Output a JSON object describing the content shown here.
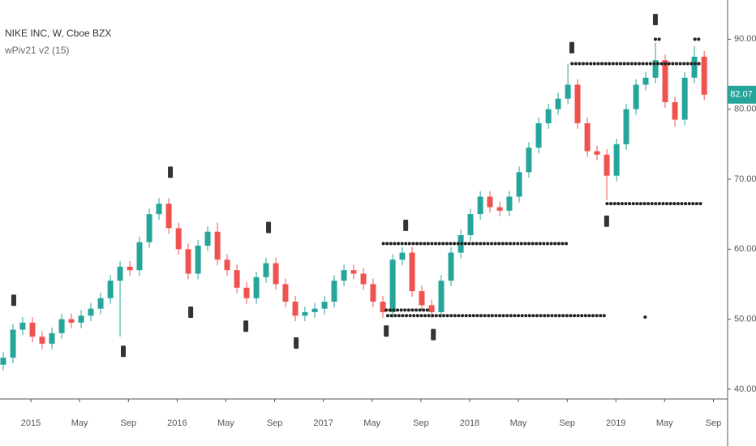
{
  "chart_data": {
    "type": "candlestick",
    "title": "NIKE INC, W, Cboe BZX",
    "subtitle": "wPiv21 v2 (15)",
    "up_color": "#26a69a",
    "down_color": "#ef5350",
    "marker_color": "#333333",
    "last_price": 82.07,
    "xlim": [
      2014.789,
      2019.764
    ],
    "ylim": [
      38.6,
      95.6
    ],
    "xticks": [
      {
        "value": 2015,
        "label": "2015"
      },
      {
        "value": 2015.333,
        "label": "May"
      },
      {
        "value": 2015.667,
        "label": "Sep"
      },
      {
        "value": 2016,
        "label": "2016"
      },
      {
        "value": 2016.333,
        "label": "May"
      },
      {
        "value": 2016.667,
        "label": "Sep"
      },
      {
        "value": 2017,
        "label": "2017"
      },
      {
        "value": 2017.333,
        "label": "May"
      },
      {
        "value": 2017.667,
        "label": "Sep"
      },
      {
        "value": 2018,
        "label": "2018"
      },
      {
        "value": 2018.333,
        "label": "May"
      },
      {
        "value": 2018.667,
        "label": "Sep"
      },
      {
        "value": 2019,
        "label": "2019"
      },
      {
        "value": 2019.333,
        "label": "May"
      },
      {
        "value": 2019.667,
        "label": "Sep"
      }
    ],
    "yticks": [
      {
        "value": 40,
        "label": "40.00"
      },
      {
        "value": 50,
        "label": "50.00"
      },
      {
        "value": 60,
        "label": "60.00"
      },
      {
        "value": 70,
        "label": "70.00"
      },
      {
        "value": 80,
        "label": "80.00"
      },
      {
        "value": 90,
        "label": "90.00"
      }
    ],
    "x": [
      2014.811,
      2014.878,
      2014.944,
      2015.011,
      2015.077,
      2015.144,
      2015.211,
      2015.277,
      2015.344,
      2015.41,
      2015.477,
      2015.544,
      2015.61,
      2015.677,
      2015.743,
      2015.81,
      2015.876,
      2015.943,
      2016.01,
      2016.076,
      2016.143,
      2016.209,
      2016.276,
      2016.342,
      2016.409,
      2016.475,
      2016.542,
      2016.608,
      2016.675,
      2016.741,
      2016.808,
      2016.874,
      2016.941,
      2017.008,
      2017.074,
      2017.141,
      2017.207,
      2017.274,
      2017.34,
      2017.407,
      2017.474,
      2017.54,
      2017.607,
      2017.673,
      2017.74,
      2017.806,
      2017.873,
      2017.94,
      2018.006,
      2018.073,
      2018.139,
      2018.206,
      2018.272,
      2018.339,
      2018.405,
      2018.472,
      2018.539,
      2018.605,
      2018.672,
      2018.738,
      2018.805,
      2018.871,
      2018.938,
      2019.005,
      2019.071,
      2019.138,
      2019.204,
      2019.271,
      2019.337,
      2019.404,
      2019.471,
      2019.537,
      2019.604
    ],
    "open": [
      43.5,
      44.5,
      48.5,
      49.5,
      47.5,
      46.5,
      48.0,
      50.0,
      49.5,
      50.5,
      51.5,
      53.0,
      55.5,
      57.5,
      57.0,
      61.0,
      65.0,
      66.5,
      63.0,
      60.0,
      56.5,
      60.5,
      62.5,
      58.5,
      57.0,
      54.5,
      53.0,
      56.0,
      58.0,
      55.0,
      52.5,
      50.5,
      51.0,
      51.5,
      52.5,
      55.5,
      57.0,
      56.5,
      55.0,
      52.5,
      51.0,
      58.5,
      59.5,
      54.0,
      52.0,
      51.0,
      55.5,
      59.5,
      62.0,
      65.0,
      67.5,
      66.0,
      65.5,
      67.5,
      71.0,
      74.5,
      78.0,
      80.0,
      81.5,
      83.5,
      78.0,
      74.0,
      73.5,
      70.5,
      75.0,
      80.0,
      83.5,
      84.5,
      87.0,
      81.0,
      78.5,
      84.5,
      87.5
    ],
    "high": [
      45.3,
      49.3,
      50.3,
      50.3,
      48.3,
      48.8,
      50.8,
      50.8,
      51.3,
      52.3,
      53.8,
      56.3,
      58.3,
      58.3,
      61.8,
      65.8,
      67.3,
      67.3,
      63.8,
      60.8,
      61.3,
      63.3,
      63.8,
      59.3,
      57.8,
      55.3,
      56.8,
      58.8,
      58.8,
      55.8,
      53.3,
      51.8,
      52.3,
      53.3,
      56.3,
      57.8,
      57.8,
      57.3,
      55.8,
      53.3,
      59.3,
      60.3,
      60.3,
      54.8,
      52.8,
      56.3,
      60.3,
      62.8,
      65.8,
      68.3,
      68.3,
      66.8,
      68.3,
      71.8,
      75.3,
      78.8,
      80.8,
      82.3,
      86.5,
      84.3,
      78.8,
      74.8,
      74.3,
      75.8,
      80.8,
      84.3,
      85.3,
      89.5,
      87.8,
      81.8,
      85.3,
      89.0,
      88.3
    ],
    "low": [
      42.7,
      43.7,
      47.7,
      46.7,
      45.7,
      45.7,
      47.2,
      48.7,
      48.7,
      49.7,
      50.7,
      52.2,
      47.5,
      56.2,
      56.2,
      60.2,
      64.2,
      62.2,
      59.2,
      55.7,
      55.7,
      59.7,
      57.7,
      56.2,
      53.7,
      52.2,
      52.2,
      55.2,
      54.2,
      51.7,
      49.7,
      49.7,
      50.2,
      50.7,
      51.7,
      54.7,
      55.7,
      54.2,
      51.7,
      50.2,
      50.2,
      57.7,
      53.2,
      51.2,
      50.2,
      50.2,
      54.7,
      58.7,
      61.2,
      64.2,
      65.2,
      64.7,
      64.7,
      66.7,
      70.2,
      73.7,
      77.2,
      79.2,
      80.7,
      77.2,
      73.2,
      72.7,
      67.0,
      69.7,
      74.2,
      79.2,
      82.7,
      83.7,
      80.2,
      77.5,
      77.7,
      83.7,
      81.3
    ],
    "close": [
      44.5,
      48.5,
      49.5,
      47.5,
      46.5,
      48.0,
      50.0,
      49.5,
      50.5,
      51.5,
      53.0,
      55.5,
      57.5,
      57.0,
      61.0,
      65.0,
      66.5,
      63.0,
      60.0,
      56.5,
      60.5,
      62.5,
      58.5,
      57.0,
      54.5,
      53.0,
      56.0,
      58.0,
      55.0,
      52.5,
      50.5,
      51.0,
      51.5,
      52.5,
      55.5,
      57.0,
      56.5,
      55.0,
      52.5,
      51.0,
      58.5,
      59.5,
      54.0,
      52.0,
      51.0,
      55.5,
      59.5,
      62.0,
      65.0,
      67.5,
      66.0,
      65.5,
      67.5,
      71.0,
      74.5,
      78.0,
      80.0,
      81.5,
      83.5,
      78.0,
      74.0,
      73.5,
      70.5,
      75.0,
      80.0,
      83.5,
      84.5,
      87.0,
      81.0,
      78.5,
      84.5,
      87.5,
      82.07
    ],
    "pivot_lines": [
      {
        "level": 86.5,
        "start": 2018.7,
        "end": 2019.57
      },
      {
        "level": 90.0,
        "start": 2019.27,
        "end": 2019.31
      },
      {
        "level": 90.0,
        "start": 2019.54,
        "end": 2019.58
      },
      {
        "level": 66.5,
        "start": 2018.94,
        "end": 2019.59
      },
      {
        "level": 60.8,
        "start": 2017.41,
        "end": 2018.67
      },
      {
        "level": 51.3,
        "start": 2017.43,
        "end": 2017.72
      },
      {
        "level": 50.5,
        "start": 2017.44,
        "end": 2018.92
      },
      {
        "level": 50.3,
        "start": 2019.2,
        "end": 2019.21
      }
    ],
    "pivot_markers": {
      "x": [
        2014.883,
        2015.632,
        2015.954,
        2016.093,
        2016.47,
        2016.625,
        2016.814,
        2017.43,
        2017.563,
        2017.752,
        2018.699,
        2018.937,
        2019.27
      ],
      "y": [
        52.7,
        45.4,
        71.0,
        51.0,
        49.0,
        63.1,
        46.6,
        48.3,
        63.4,
        47.8,
        88.8,
        64.0,
        92.8
      ]
    }
  }
}
